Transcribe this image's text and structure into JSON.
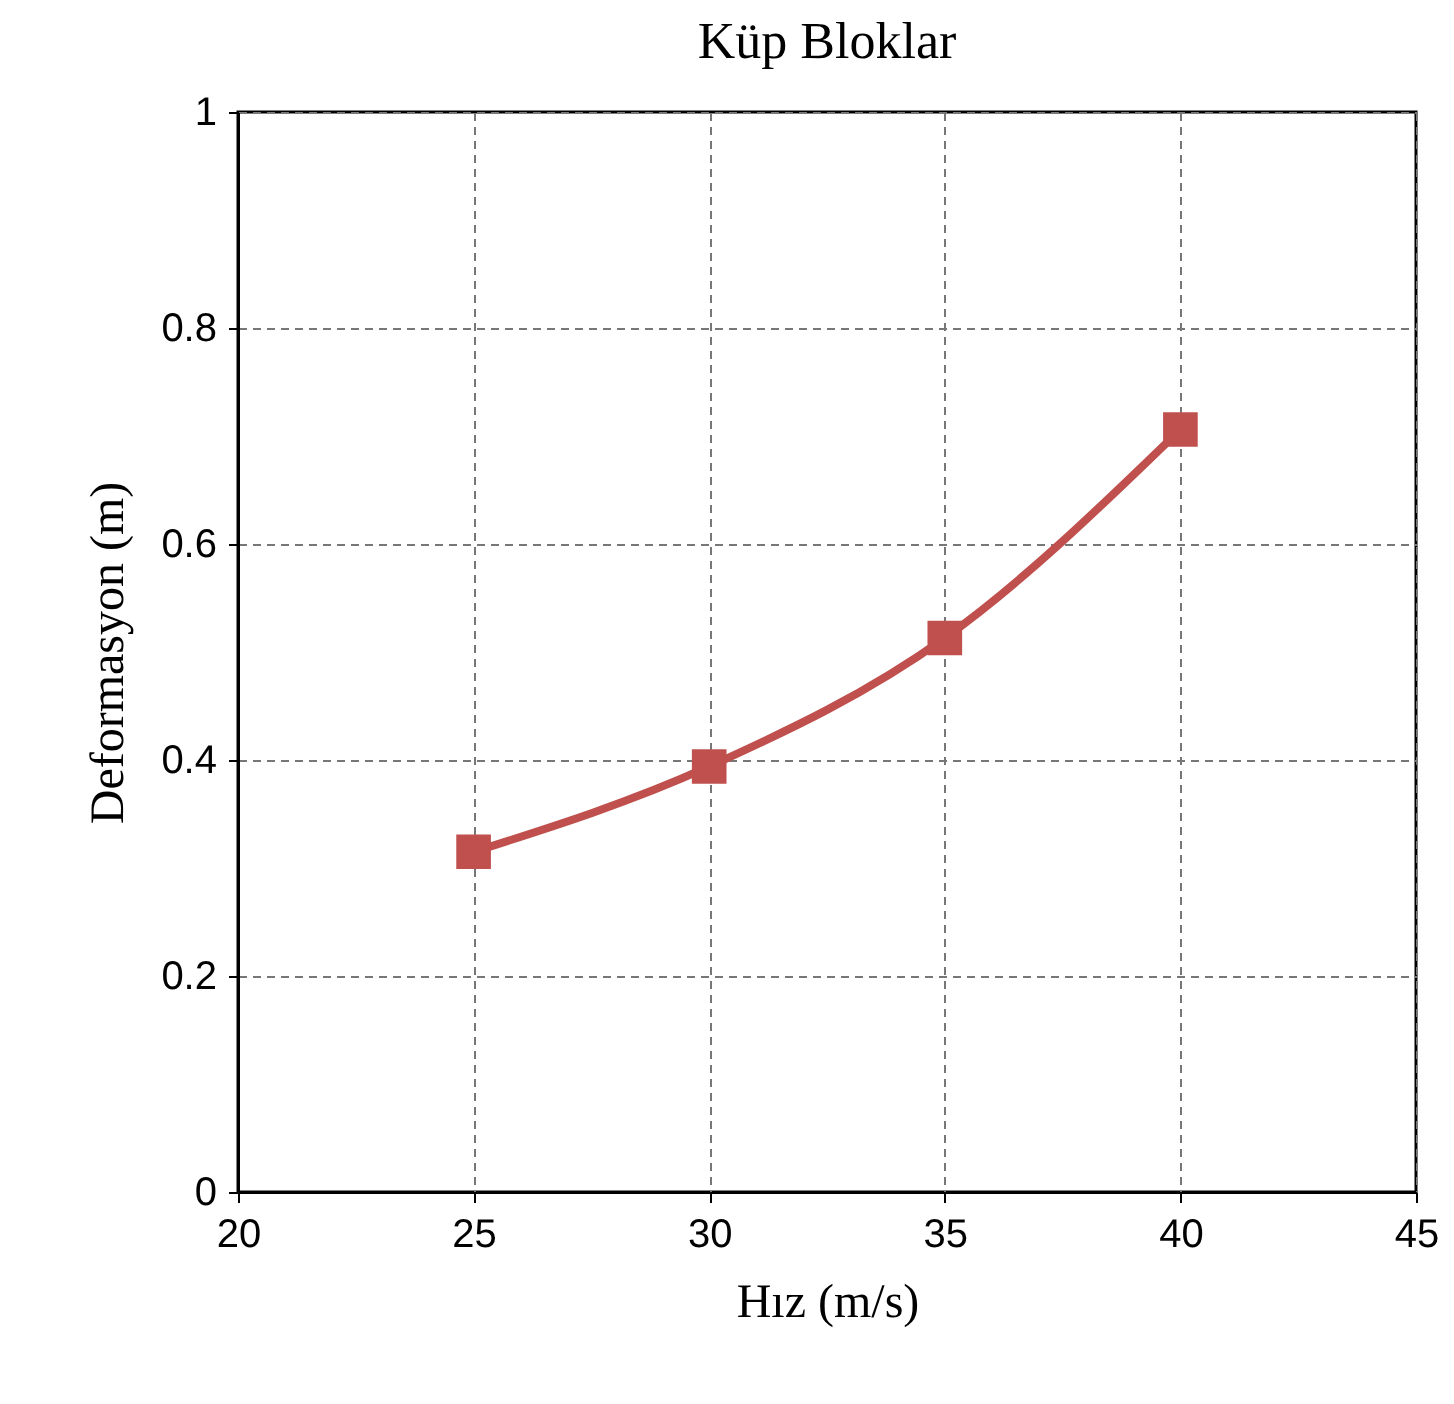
{
  "chart_data": {
    "type": "line",
    "title": "Küp Bloklar",
    "xlabel": "Hız (m/s)",
    "ylabel": "Deformasyon (m)",
    "x": [
      25,
      30,
      35,
      40
    ],
    "series": [
      {
        "color": "#c0504d",
        "values": [
          0.315,
          0.394,
          0.513,
          0.706
        ]
      }
    ],
    "xlim": [
      20,
      45
    ],
    "xticks": [
      20,
      25,
      30,
      35,
      40,
      45
    ],
    "ylim": [
      0,
      1
    ],
    "yticks": [
      0,
      0.2,
      0.4,
      0.6,
      0.8,
      1
    ],
    "grid": true,
    "marker": "square",
    "line_style": "solid",
    "legend": false
  }
}
